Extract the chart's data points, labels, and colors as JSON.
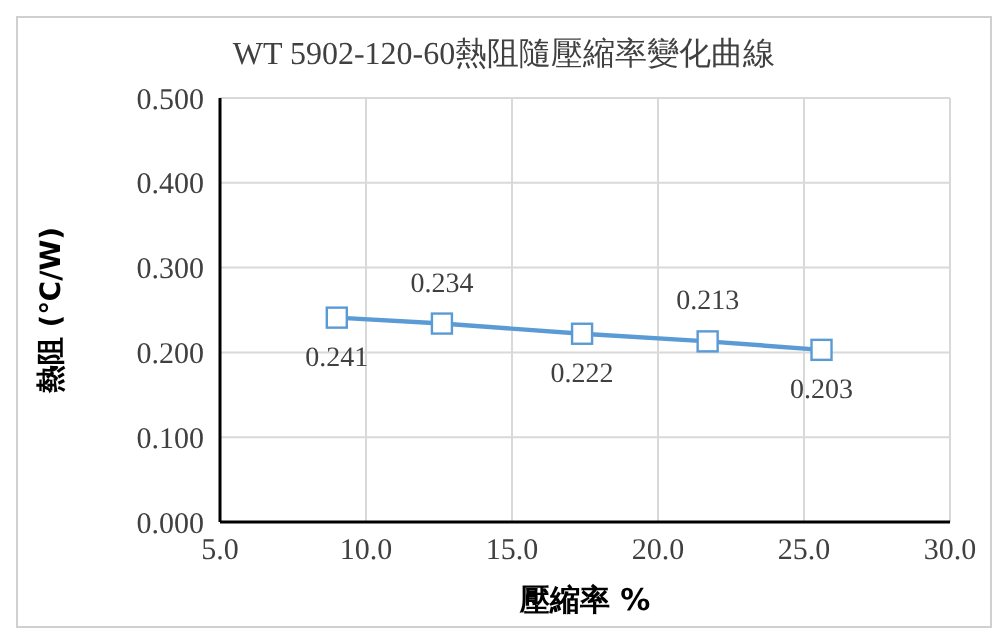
{
  "chart_data": {
    "type": "line",
    "title": "WT 5902-120-60熱阻隨壓縮率變化曲線",
    "xlabel": "壓縮率 %",
    "ylabel": "熱阻 (℃/W)",
    "x": [
      9.0,
      12.6,
      17.4,
      21.7,
      25.6
    ],
    "series": [
      {
        "color": "#5b9bd5",
        "values": [
          0.241,
          0.234,
          0.222,
          0.213,
          0.203
        ]
      }
    ],
    "xlim": [
      5,
      30
    ],
    "xticks": [
      {
        "value": 5,
        "label": "5.0"
      },
      {
        "value": 10,
        "label": "10.0"
      },
      {
        "value": 15,
        "label": "15.0"
      },
      {
        "value": 20,
        "label": "20.0"
      },
      {
        "value": 25,
        "label": "25.0"
      },
      {
        "value": 30,
        "label": "30.0"
      }
    ],
    "ylim": [
      0,
      0.5
    ],
    "yticks": [
      {
        "value": 0,
        "label": "0.000"
      },
      {
        "value": 0.1,
        "label": "0.100"
      },
      {
        "value": 0.2,
        "label": "0.200"
      },
      {
        "value": 0.3,
        "label": "0.300"
      },
      {
        "value": 0.4,
        "label": "0.400"
      },
      {
        "value": 0.5,
        "label": "0.500"
      }
    ],
    "grid": true,
    "marker": "square",
    "line_style": "solid",
    "data_labels": true,
    "legend": false
  }
}
